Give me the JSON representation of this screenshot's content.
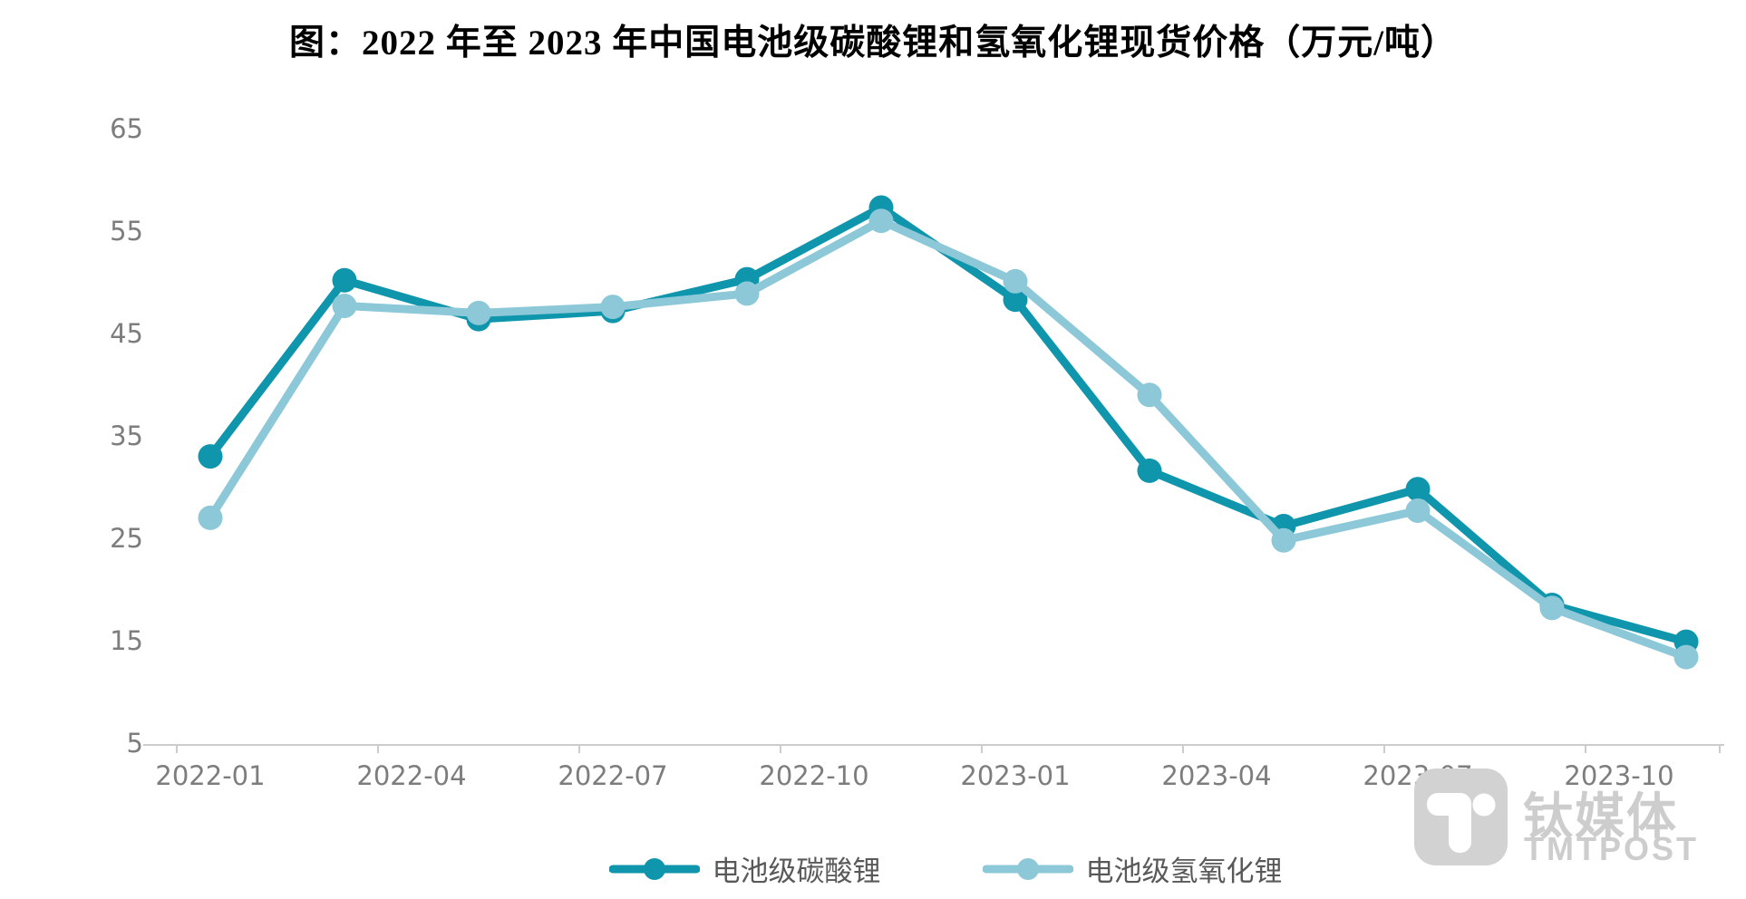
{
  "title": "图：2022 年至 2023 年中国电池级碳酸锂和氢氧化锂现货价格（万元/吨）",
  "watermark": {
    "cn": "钛媒体",
    "en": "TMTPOST"
  },
  "colors": {
    "carbonate": "#1096ac",
    "hydroxide": "#8cc8d8",
    "axis_line": "#cccccc",
    "axis_text": "#7d7d7d",
    "legend_text": "#595959",
    "watermark": "#cdcdcd",
    "title_text": "#000000"
  },
  "chart_data": {
    "type": "line",
    "title": "图：2022 年至 2023 年中国电池级碳酸锂和氢氧化锂现货价格（万元/吨）",
    "unit": "万元/吨",
    "x": [
      "2022-01",
      "2022-03",
      "2022-05",
      "2022-07",
      "2022-09",
      "2022-11",
      "2023-01",
      "2023-03",
      "2023-05",
      "2023-07",
      "2023-09",
      "2023-11"
    ],
    "x_tick_labels": [
      "2022-01",
      "2022-04",
      "2022-07",
      "2022-10",
      "2023-01",
      "2023-04",
      "2023-07",
      "2023-10"
    ],
    "y_ticks": [
      5,
      15,
      25,
      35,
      45,
      55,
      65
    ],
    "ylim": [
      5,
      68
    ],
    "grid": false,
    "legend_position": "bottom",
    "series": [
      {
        "name": "电池级碳酸锂",
        "color": "#1096ac",
        "values": [
          33,
          50.2,
          46.4,
          47.2,
          50.3,
          57.3,
          48.3,
          31.6,
          26.2,
          29.8,
          18.5,
          14.9
        ]
      },
      {
        "name": "电池级氢氧化锂",
        "color": "#8cc8d8",
        "values": [
          27,
          47.7,
          47.0,
          47.6,
          48.9,
          56.0,
          50.1,
          39.0,
          24.8,
          27.7,
          18.2,
          13.4
        ]
      }
    ]
  }
}
